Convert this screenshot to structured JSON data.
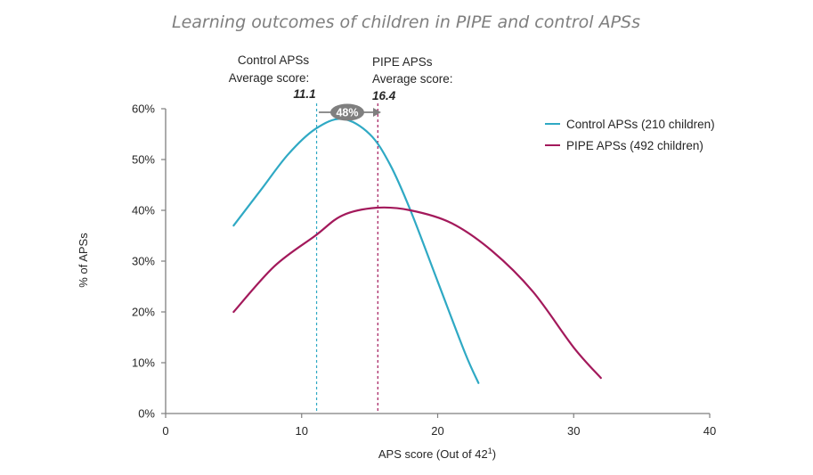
{
  "chart_data": {
    "type": "line",
    "title": "Learning outcomes of children in PIPE and control APSs",
    "xlabel": "APS score (Out of 42",
    "xlabel_sup": "1",
    "xlabel_close": ")",
    "ylabel": "% of APSs",
    "xlim": [
      0,
      40
    ],
    "ylim": [
      0,
      60
    ],
    "x_ticks": [
      0,
      10,
      20,
      30,
      40
    ],
    "y_ticks": [
      0,
      10,
      20,
      30,
      40,
      50,
      60
    ],
    "y_tick_labels": [
      "0%",
      "10%",
      "20%",
      "30%",
      "40%",
      "50%",
      "60%"
    ],
    "grid": false,
    "legend_position": "top-right",
    "series": [
      {
        "name": "Control APSs (210 children)",
        "color": "#2fa9c4",
        "x": [
          5,
          7,
          9,
          11,
          13,
          15,
          16.5,
          18,
          20,
          22,
          23
        ],
        "y": [
          37,
          44,
          51,
          56,
          58,
          55,
          49,
          40,
          26,
          12,
          6
        ]
      },
      {
        "name": "PIPE APSs (492 children)",
        "color": "#a3195b",
        "x": [
          5,
          8,
          11,
          13,
          15.5,
          18,
          21,
          24,
          27,
          30,
          32
        ],
        "y": [
          20,
          29,
          35,
          39,
          40.5,
          40,
          37.5,
          32,
          24,
          13,
          7
        ]
      }
    ],
    "annotations": {
      "control_label_line1": "Control  APSs",
      "control_label_line2": "Average score:",
      "control_value": "11.1",
      "control_x": 11.1,
      "pipe_label_line1": "PIPE APSs",
      "pipe_label_line2": "Average score:",
      "pipe_value": "16.4",
      "pipe_x": 15.6,
      "badge_text": "48%"
    }
  }
}
